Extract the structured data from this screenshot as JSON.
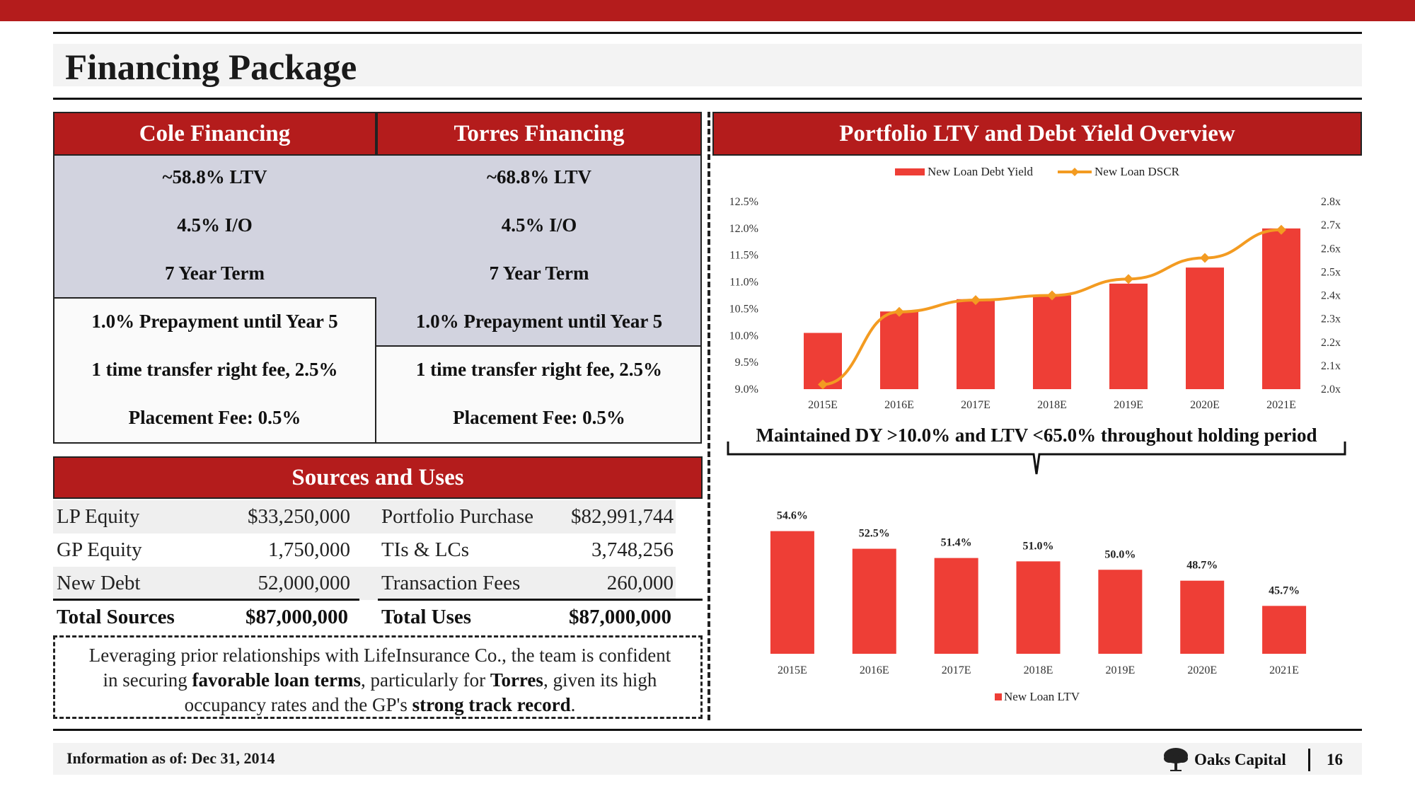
{
  "page": {
    "title": "Financing Package",
    "footer_info": "Information as of: Dec 31, 2014",
    "brand": "Oaks Capital",
    "page_number": "16"
  },
  "financing": {
    "cole": {
      "header": "Cole Financing",
      "terms": [
        "~58.8% LTV",
        "4.5% I/O",
        "7 Year Term",
        "1.0% Prepayment until Year 5",
        "1 time transfer right fee, 2.5%",
        "Placement Fee: 0.5%"
      ]
    },
    "torres": {
      "header": "Torres Financing",
      "terms": [
        "~68.8% LTV",
        "4.5% I/O",
        "7 Year Term",
        "1.0% Prepayment until Year 5",
        "1 time transfer right fee, 2.5%",
        "Placement Fee: 0.5%"
      ]
    }
  },
  "sources_uses": {
    "header": "Sources and Uses",
    "rows": [
      {
        "source": "LP Equity",
        "source_amount": "$33,250,000",
        "use": "Portfolio Purchase",
        "use_amount": "$82,991,744"
      },
      {
        "source": "GP Equity",
        "source_amount": "1,750,000",
        "use": "TIs & LCs",
        "use_amount": "3,748,256"
      },
      {
        "source": "New Debt",
        "source_amount": "52,000,000",
        "use": "Transaction Fees",
        "use_amount": "260,000"
      }
    ],
    "totals": {
      "source": "Total Sources",
      "source_amount": "$87,000,000",
      "use": "Total Uses",
      "use_amount": "$87,000,000"
    }
  },
  "note": {
    "p1": "Leveraging prior relationships with LifeInsurance Co., the team is confident",
    "p2": "in securing ",
    "b1": "favorable loan terms",
    "p3": ", particularly for ",
    "b2": "Torres",
    "p4": ", given its high",
    "p5": "occupancy rates and the GP's ",
    "b3": "strong track record",
    "p6": "."
  },
  "portfolio": {
    "header": "Portfolio LTV and Debt Yield Overview",
    "callout": "Maintained DY >10.0% and LTV <65.0% throughout holding period"
  },
  "colors": {
    "brand_red": "#b41c1c",
    "bar_red": "#ee3e36",
    "line_orange": "#f39b21",
    "term_gray": "#d2d3df"
  },
  "chart_data": [
    {
      "type": "bar",
      "categories": [
        "2015E",
        "2016E",
        "2017E",
        "2018E",
        "2019E",
        "2020E",
        "2021E"
      ],
      "series": [
        {
          "name": "New Loan Debt Yield",
          "type": "bar",
          "axis": "left",
          "values": [
            10.05,
            10.45,
            10.68,
            10.75,
            10.97,
            11.27,
            12.0
          ]
        },
        {
          "name": "New Loan DSCR",
          "type": "line",
          "axis": "right",
          "values": [
            2.02,
            2.33,
            2.38,
            2.4,
            2.47,
            2.56,
            2.68
          ]
        }
      ],
      "y_left_ticks": [
        "12.5%",
        "12.0%",
        "11.5%",
        "11.0%",
        "10.5%",
        "10.0%",
        "9.5%",
        "9.0%"
      ],
      "y_right_ticks": [
        "2.8x",
        "2.7x",
        "2.6x",
        "2.5x",
        "2.4x",
        "2.3x",
        "2.2x",
        "2.1x",
        "2.0x"
      ],
      "ylim_left": [
        9.0,
        12.5
      ],
      "ylim_right": [
        2.0,
        2.8
      ],
      "legend": "top",
      "grid": false
    },
    {
      "type": "bar",
      "categories": [
        "2015E",
        "2016E",
        "2017E",
        "2018E",
        "2019E",
        "2020E",
        "2021E"
      ],
      "series": [
        {
          "name": "New Loan LTV",
          "values": [
            54.6,
            52.5,
            51.4,
            51.0,
            50.0,
            48.7,
            45.7
          ]
        }
      ],
      "data_labels": [
        "54.6%",
        "52.5%",
        "51.4%",
        "51.0%",
        "50.0%",
        "48.7%",
        "45.7%"
      ],
      "ylim": [
        40,
        56
      ],
      "legend": "bottom",
      "grid": false
    }
  ]
}
